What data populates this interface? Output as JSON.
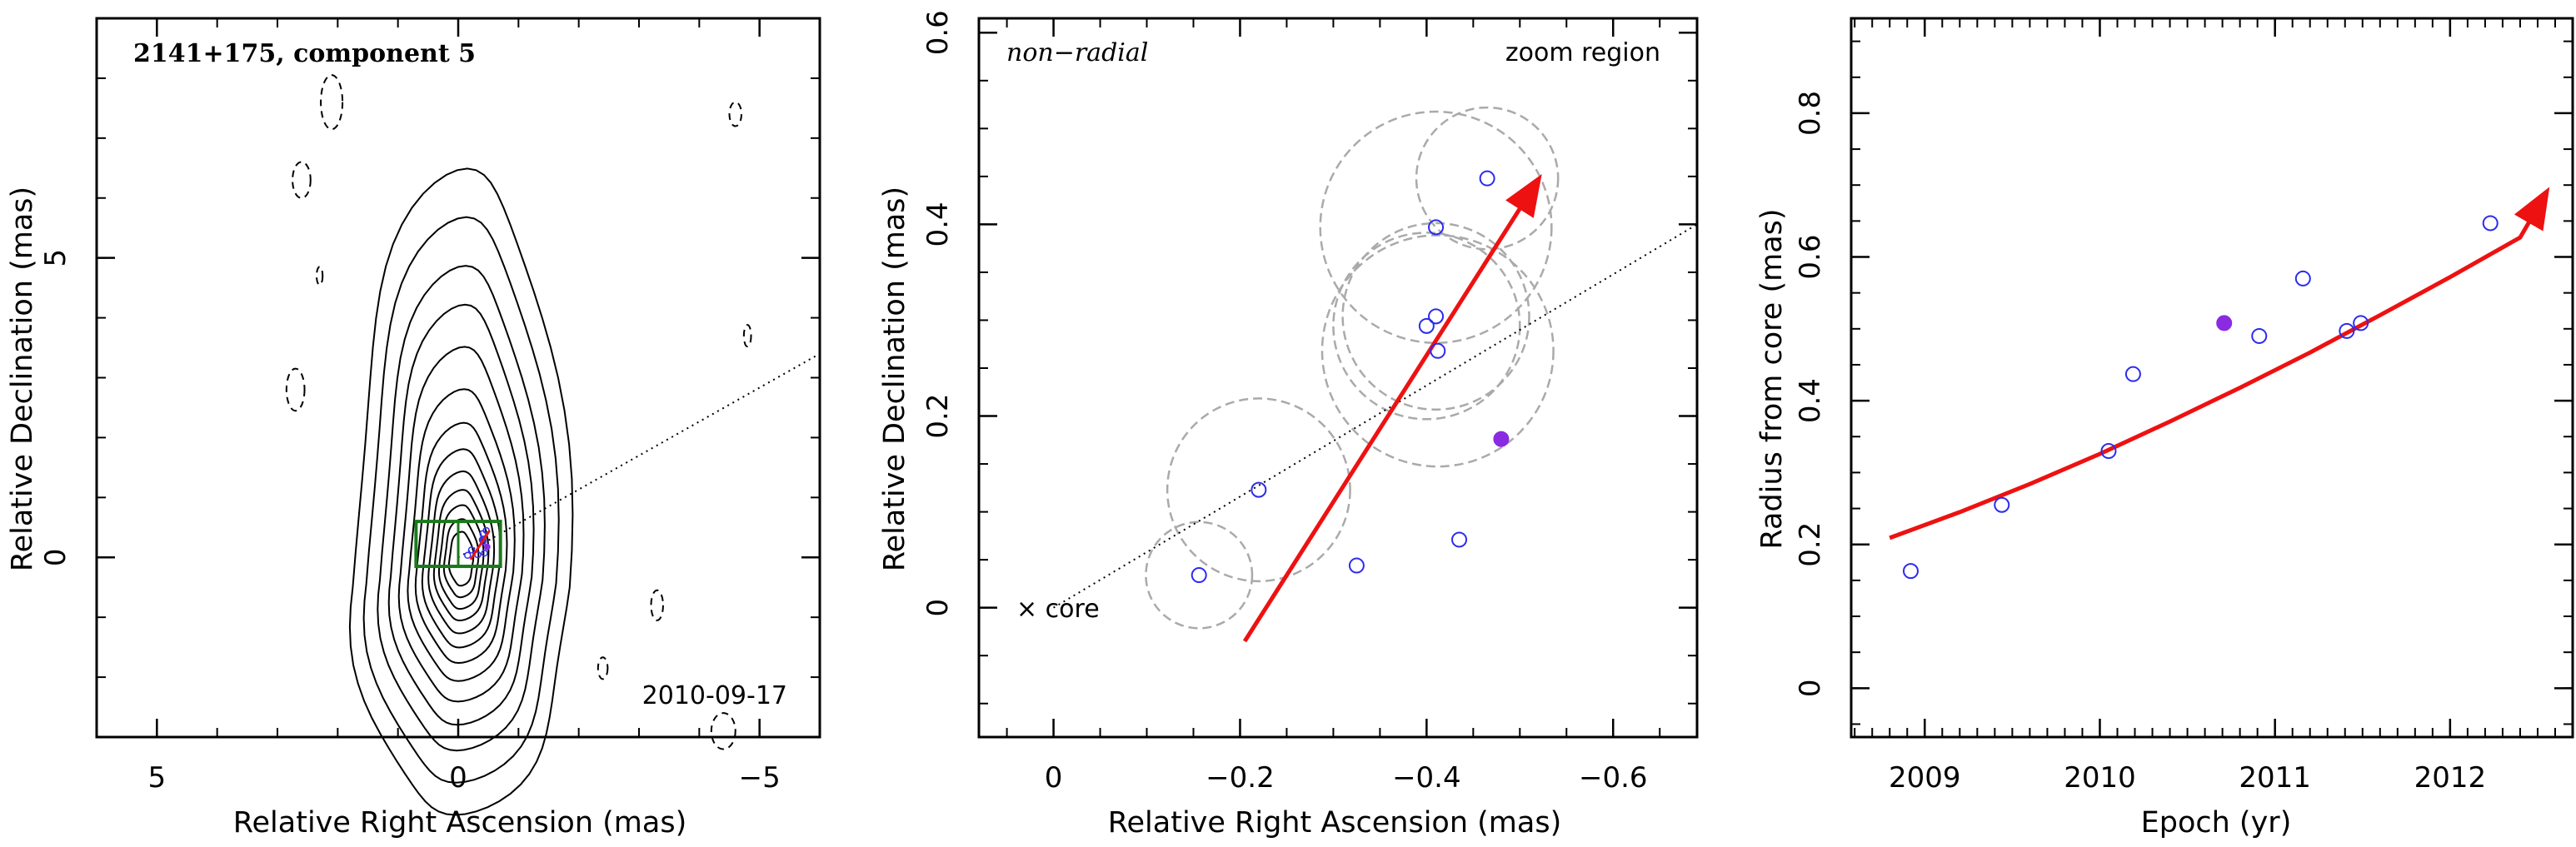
{
  "chart_data": [
    {
      "type": "contour",
      "panel": "left",
      "title": "2141+175, component 5",
      "date_label": "2010-09-17",
      "xlabel": "Relative Right Ascension (mas)",
      "ylabel": "Relative Declination (mas)",
      "xlim": [
        6,
        -6
      ],
      "ylim": [
        -3,
        9
      ],
      "xticks": [
        5,
        0,
        -5
      ],
      "yticks": [
        0,
        5
      ],
      "xtick_labels": [
        "5",
        "0",
        "−5"
      ],
      "ytick_labels": [
        "0",
        "5"
      ],
      "jet_direction_line": [
        [
          0,
          0
        ],
        [
          -6,
          3.4
        ]
      ],
      "zoom_box": [
        [
          0.7,
          -0.15
        ],
        [
          -0.7,
          0.6
        ]
      ],
      "positive_contour_scale_mas": [
        2.0,
        1.75,
        1.5,
        1.3,
        1.12,
        0.96,
        0.82,
        0.7,
        0.59,
        0.49,
        0.4,
        0.31,
        0.22
      ],
      "negative_contours": [
        {
          "center": [
            2.1,
            7.6
          ],
          "rx": 0.18,
          "ry": 0.45
        },
        {
          "center": [
            2.6,
            6.3
          ],
          "rx": 0.15,
          "ry": 0.3
        },
        {
          "center": [
            2.3,
            4.7
          ],
          "rx": 0.05,
          "ry": 0.15
        },
        {
          "center": [
            -4.6,
            7.4
          ],
          "rx": 0.1,
          "ry": 0.2
        },
        {
          "center": [
            -4.8,
            3.7
          ],
          "rx": 0.06,
          "ry": 0.18
        },
        {
          "center": [
            2.7,
            2.8
          ],
          "rx": 0.15,
          "ry": 0.35
        },
        {
          "center": [
            -3.3,
            -0.8
          ],
          "rx": 0.1,
          "ry": 0.25
        },
        {
          "center": [
            -2.4,
            -1.85
          ],
          "rx": 0.08,
          "ry": 0.18
        },
        {
          "center": [
            -4.4,
            -2.9
          ],
          "rx": 0.2,
          "ry": 0.3
        }
      ]
    },
    {
      "type": "scatter",
      "panel": "middle",
      "label_left": "non−radial",
      "label_right": "zoom region",
      "core_label": "× core",
      "xlabel": "Relative Right Ascension (mas)",
      "ylabel": "Relative Declination (mas)",
      "xlim": [
        0.08,
        -0.69
      ],
      "ylim": [
        -0.135,
        0.615
      ],
      "xticks": [
        0,
        -0.2,
        -0.4,
        -0.6
      ],
      "yticks": [
        0,
        0.2,
        0.4,
        0.6
      ],
      "xtick_labels": [
        "0",
        "−0.2",
        "−0.4",
        "−0.6"
      ],
      "ytick_labels": [
        "0",
        "0.2",
        "0.4",
        "0.6"
      ],
      "points_open": [
        [
          -0.156,
          0.034
        ],
        [
          -0.22,
          0.123
        ],
        [
          -0.325,
          0.044
        ],
        [
          -0.4,
          0.294
        ],
        [
          -0.41,
          0.304
        ],
        [
          -0.41,
          0.397
        ],
        [
          -0.412,
          0.268
        ],
        [
          -0.435,
          0.071
        ],
        [
          -0.465,
          0.448
        ]
      ],
      "points_filled": [
        [
          -0.48,
          0.176
        ]
      ],
      "error_circles": [
        {
          "center": [
            -0.156,
            0.034
          ],
          "r": 0.057
        },
        {
          "center": [
            -0.22,
            0.123
          ],
          "r": 0.098
        },
        {
          "center": [
            -0.41,
            0.397
          ],
          "r": 0.124
        },
        {
          "center": [
            -0.465,
            0.448
          ],
          "r": 0.076
        },
        {
          "center": [
            -0.4,
            0.294
          ],
          "r": 0.1
        },
        {
          "center": [
            -0.41,
            0.304
          ],
          "r": 0.1
        },
        {
          "center": [
            -0.412,
            0.268
          ],
          "r": 0.124
        }
      ],
      "trend_arrow": [
        [
          -0.205,
          -0.035
        ],
        [
          -0.52,
          0.447
        ]
      ],
      "radial_line": [
        [
          0,
          0
        ],
        [
          -0.69,
          0.4
        ]
      ]
    },
    {
      "type": "scatter",
      "panel": "right",
      "xlabel": "Epoch (yr)",
      "ylabel": "Radius from core (mas)",
      "xlim": [
        2008.58,
        2012.7
      ],
      "ylim": [
        -0.068,
        0.932
      ],
      "xticks": [
        2009,
        2010,
        2011,
        2012
      ],
      "yticks": [
        0,
        0.2,
        0.4,
        0.6,
        0.8
      ],
      "xtick_labels": [
        "2009",
        "2010",
        "2011",
        "2012"
      ],
      "ytick_labels": [
        "0",
        "0.2",
        "0.4",
        "0.6",
        "0.8"
      ],
      "points_open": [
        [
          2008.92,
          0.163
        ],
        [
          2009.44,
          0.255
        ],
        [
          2010.05,
          0.33
        ],
        [
          2010.19,
          0.437
        ],
        [
          2010.91,
          0.49
        ],
        [
          2011.16,
          0.57
        ],
        [
          2011.41,
          0.497
        ],
        [
          2011.49,
          0.508
        ],
        [
          2012.23,
          0.647
        ]
      ],
      "points_filled": [
        [
          2010.71,
          0.508
        ]
      ],
      "fit_curve": [
        [
          2008.8,
          0.209
        ],
        [
          2009.2,
          0.245
        ],
        [
          2009.6,
          0.284
        ],
        [
          2010.0,
          0.326
        ],
        [
          2010.4,
          0.371
        ],
        [
          2010.8,
          0.418
        ],
        [
          2011.2,
          0.467
        ],
        [
          2011.6,
          0.519
        ],
        [
          2012.0,
          0.572
        ],
        [
          2012.4,
          0.627
        ],
        [
          2012.55,
          0.69
        ]
      ]
    }
  ]
}
